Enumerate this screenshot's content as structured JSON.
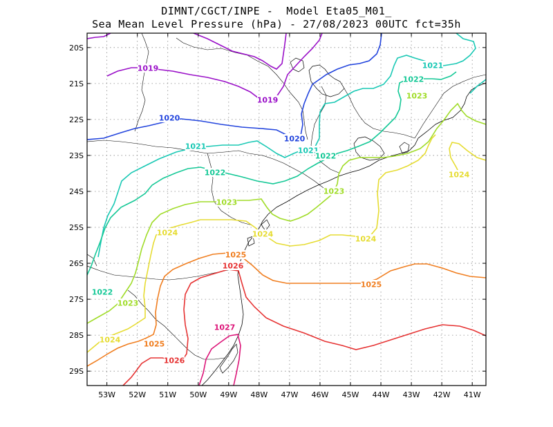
{
  "title": {
    "line1": "DIMNT/CGCT/INPE -  Model Eta05_M01_",
    "line2": "Sea Mean Level Pressure (hPa) - 27/08/2023 00UTC fct=35h"
  },
  "axes": {
    "x_ticks": [
      "53W",
      "52W",
      "51W",
      "50W",
      "49W",
      "48W",
      "47W",
      "46W",
      "45W",
      "44W",
      "43W",
      "42W",
      "41W"
    ],
    "y_ticks": [
      "20S",
      "21S",
      "22S",
      "23S",
      "24S",
      "25S",
      "26S",
      "27S",
      "28S",
      "29S"
    ]
  },
  "chart_data": {
    "type": "contour",
    "variable": "Sea Mean Level Pressure (hPa)",
    "xlim": [
      -53.65,
      -40.55
    ],
    "ylim": [
      -29.4,
      -19.6
    ],
    "grid": true,
    "levels": [
      {
        "value": 1019,
        "label": "1019",
        "color": "#9a10c8"
      },
      {
        "value": 1020,
        "label": "1020",
        "color": "#2244dd"
      },
      {
        "value": 1021,
        "label": "1021",
        "color": "#18c8b4"
      },
      {
        "value": 1022,
        "label": "1022",
        "color": "#14c896"
      },
      {
        "value": 1023,
        "label": "1023",
        "color": "#a0dc28"
      },
      {
        "value": 1024,
        "label": "1024",
        "color": "#e6dc32"
      },
      {
        "value": 1025,
        "label": "1025",
        "color": "#f07d1e"
      },
      {
        "value": 1026,
        "label": "1026",
        "color": "#e63232"
      },
      {
        "value": 1027,
        "label": "1027",
        "color": "#dc1478"
      }
    ]
  }
}
